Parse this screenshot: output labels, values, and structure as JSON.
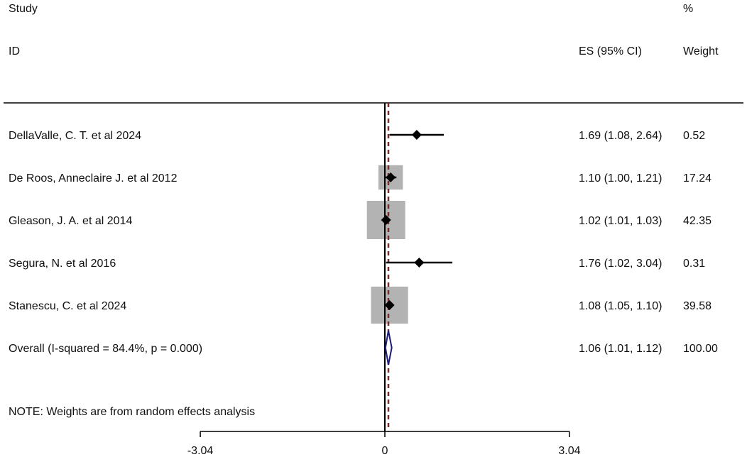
{
  "header": {
    "study_line1": "Study",
    "study_line2": "ID",
    "es_label": "ES (95% CI)",
    "weight_line1": "%",
    "weight_line2": "Weight"
  },
  "note": "NOTE: Weights are from random effects analysis",
  "chart_data": {
    "type": "forest",
    "title": "",
    "xlabel": "",
    "xlim": [
      -3.04,
      3.04
    ],
    "x_ticks": [
      {
        "value": -3.04,
        "label": "-3.04"
      },
      {
        "value": 0,
        "label": "0"
      },
      {
        "value": 3.04,
        "label": "3.04"
      }
    ],
    "null_line": 0,
    "overall_line": 1.06,
    "studies": [
      {
        "label": "DellaValle, C. T. et al 2024",
        "es": 1.69,
        "lo": 1.08,
        "hi": 2.64,
        "es_text": "1.69 (1.08, 2.64)",
        "weight": 0.52,
        "weight_text": "0.52"
      },
      {
        "label": "De Roos, Anneclaire J. et al 2012",
        "es": 1.1,
        "lo": 1.0,
        "hi": 1.21,
        "es_text": "1.10 (1.00, 1.21)",
        "weight": 17.24,
        "weight_text": "17.24"
      },
      {
        "label": "Gleason, J. A. et al 2014",
        "es": 1.02,
        "lo": 1.01,
        "hi": 1.03,
        "es_text": "1.02 (1.01, 1.03)",
        "weight": 42.35,
        "weight_text": "42.35"
      },
      {
        "label": "Segura, N. et al 2016",
        "es": 1.76,
        "lo": 1.02,
        "hi": 3.04,
        "es_text": "1.76 (1.02, 3.04)",
        "weight": 0.31,
        "weight_text": "0.31"
      },
      {
        "label": "Stanescu, C. et al 2024",
        "es": 1.08,
        "lo": 1.05,
        "hi": 1.1,
        "es_text": "1.08 (1.05, 1.10)",
        "weight": 39.58,
        "weight_text": "39.58"
      }
    ],
    "overall": {
      "label": "Overall  (I-squared = 84.4%, p = 0.000)",
      "es": 1.06,
      "lo": 1.01,
      "hi": 1.12,
      "es_text": "1.06 (1.01, 1.12)",
      "weight_text": "100.00"
    },
    "colors": {
      "weight_box": "#b3b3b3",
      "marker": "#000000",
      "overall_outline": "#1a1a7a",
      "overall_line": "#7a2a2a",
      "axis": "#000000"
    }
  }
}
